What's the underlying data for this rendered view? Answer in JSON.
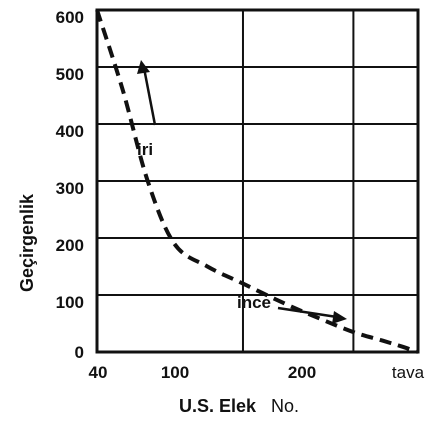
{
  "chart_data": {
    "type": "line",
    "xlabel_main": "U.S. Elek",
    "xlabel_suffix": "No.",
    "ylabel": "Geçirgenlik",
    "x_ticks": [
      "40",
      "100",
      "200",
      "tava"
    ],
    "y_ticks": [
      "600",
      "500",
      "400",
      "300",
      "200",
      "100",
      "0"
    ],
    "y_values": [
      600,
      500,
      400,
      300,
      200,
      100,
      0
    ],
    "ylim": [
      0,
      600
    ],
    "grid": true,
    "series": [
      {
        "style": "dashed",
        "color": "#111111",
        "x": [
          "40",
          "47",
          "55",
          "65",
          "80",
          "100",
          "130",
          "160",
          "200",
          "240",
          "270",
          "tava"
        ],
        "values": [
          600,
          460,
          300,
          190,
          150,
          120,
          85,
          60,
          35,
          20,
          10,
          0
        ]
      }
    ],
    "annotations": [
      {
        "text": "iri",
        "arrow": "up"
      },
      {
        "text": "ince",
        "arrow": "right"
      }
    ]
  }
}
